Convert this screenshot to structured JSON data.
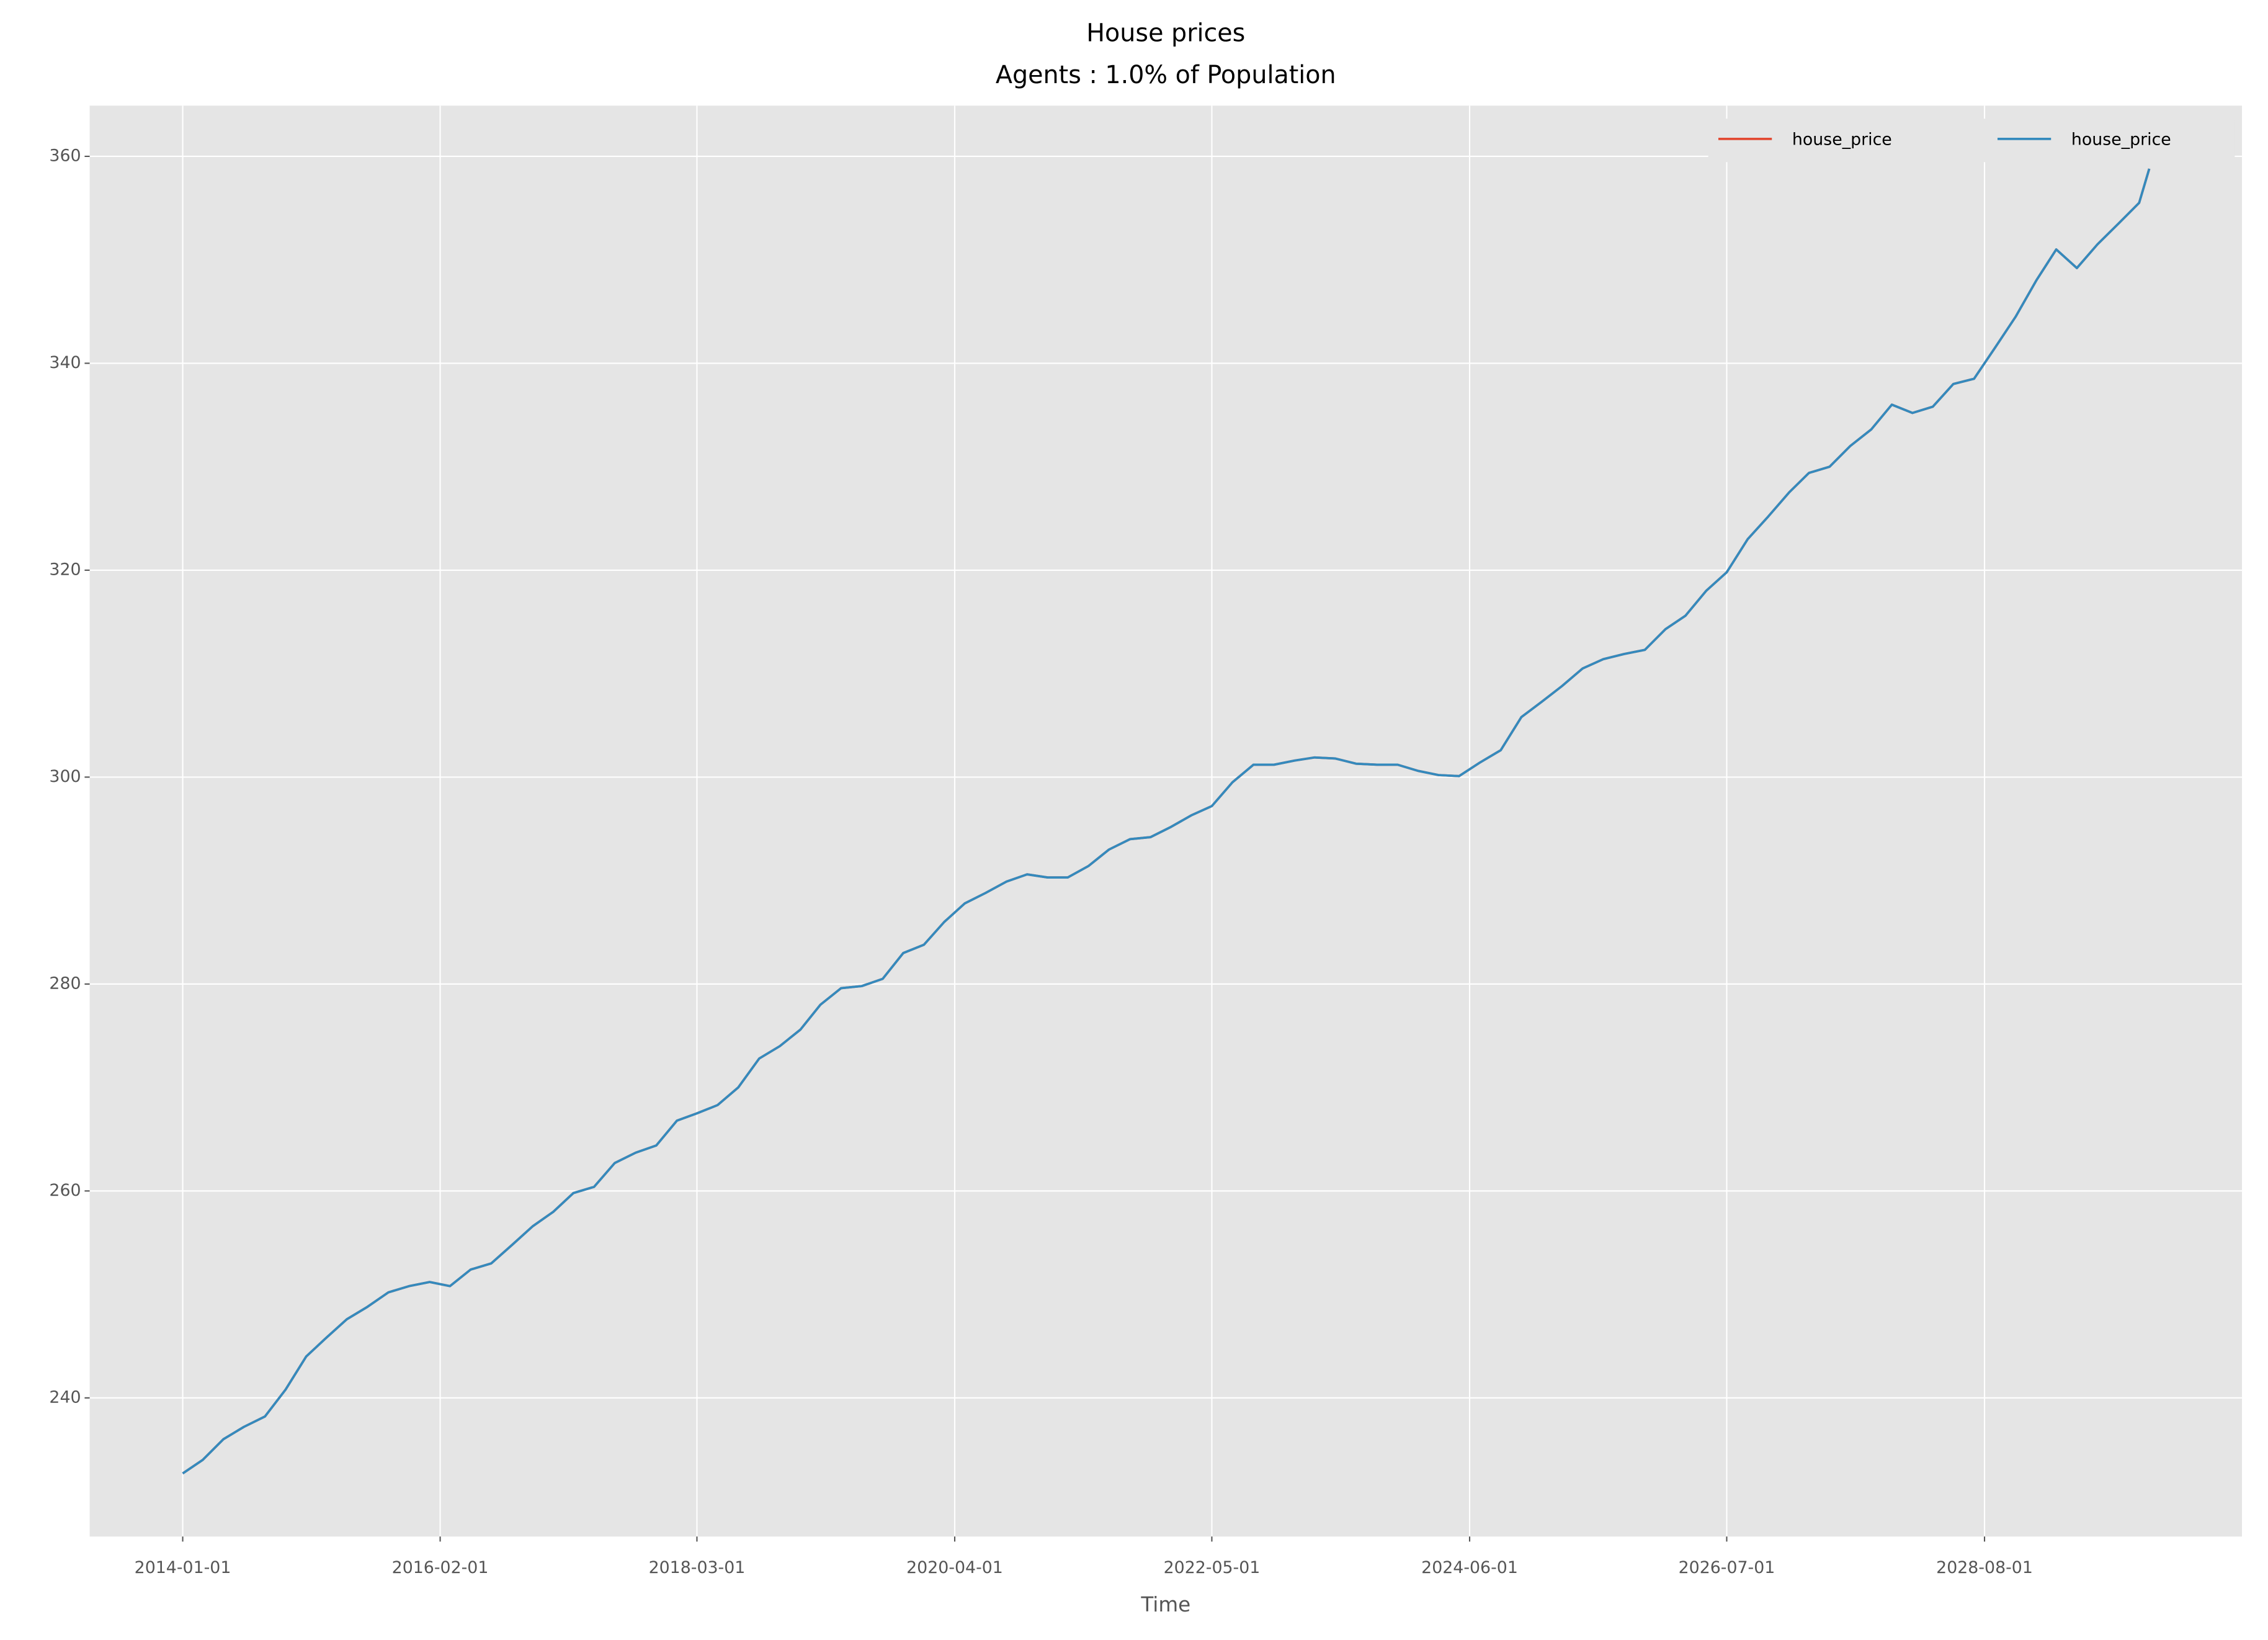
{
  "chart_data": {
    "type": "line",
    "title": "House prices",
    "subtitle": "Agents : 1.0% of Population",
    "x_label": "Time",
    "x": [
      "2014-01-01",
      "2014-03-01",
      "2014-05-01",
      "2014-07-01",
      "2014-09-01",
      "2014-11-01",
      "2015-01-01",
      "2015-03-01",
      "2015-05-01",
      "2015-07-01",
      "2015-09-01",
      "2015-11-01",
      "2016-01-01",
      "2016-03-01",
      "2016-05-01",
      "2016-07-01",
      "2016-09-01",
      "2016-11-01",
      "2017-01-01",
      "2017-03-01",
      "2017-05-01",
      "2017-07-01",
      "2017-09-01",
      "2017-11-01",
      "2018-01-01",
      "2018-03-01",
      "2018-05-01",
      "2018-07-01",
      "2018-09-01",
      "2018-11-01",
      "2019-01-01",
      "2019-03-01",
      "2019-05-01",
      "2019-07-01",
      "2019-09-01",
      "2019-11-01",
      "2020-01-01",
      "2020-03-01",
      "2020-05-01",
      "2020-07-01",
      "2020-09-01",
      "2020-11-01",
      "2021-01-01",
      "2021-03-01",
      "2021-05-01",
      "2021-07-01",
      "2021-09-01",
      "2021-11-01",
      "2022-01-01",
      "2022-03-01",
      "2022-05-01",
      "2022-07-01",
      "2022-09-01",
      "2022-11-01",
      "2023-01-01",
      "2023-03-01",
      "2023-05-01",
      "2023-07-01",
      "2023-09-01",
      "2023-11-01",
      "2024-01-01",
      "2024-03-01",
      "2024-05-01",
      "2024-07-01",
      "2024-09-01",
      "2024-11-01",
      "2025-01-01",
      "2025-03-01",
      "2025-05-01",
      "2025-07-01",
      "2025-09-01",
      "2025-11-01",
      "2026-01-01",
      "2026-03-01",
      "2026-05-01",
      "2026-07-01",
      "2026-09-01",
      "2026-11-01",
      "2027-01-01",
      "2027-03-01",
      "2027-05-01",
      "2027-07-01",
      "2027-09-01",
      "2027-11-01",
      "2028-01-01",
      "2028-03-01",
      "2028-05-01",
      "2028-07-01",
      "2028-09-01",
      "2028-11-01",
      "2029-01-01",
      "2029-03-01",
      "2029-05-01",
      "2029-07-01",
      "2029-09-01",
      "2029-11-01",
      "2029-12-01"
    ],
    "series": [
      {
        "name": "house_price",
        "color": "#E24A33",
        "values": [
          232.7,
          234.0,
          236.0,
          237.2,
          238.2,
          240.8,
          244.0,
          245.8,
          247.6,
          248.8,
          250.2,
          250.8,
          251.2,
          250.8,
          252.4,
          253.0,
          254.8,
          256.6,
          258.0,
          259.8,
          260.4,
          262.7,
          263.7,
          264.4,
          266.8,
          267.5,
          268.3,
          270.0,
          272.8,
          274.0,
          275.6,
          278.0,
          279.6,
          279.8,
          280.5,
          283.0,
          283.8,
          286.0,
          287.8,
          288.8,
          289.9,
          290.6,
          290.3,
          290.3,
          291.4,
          293.0,
          294.0,
          294.2,
          295.2,
          296.3,
          297.2,
          299.5,
          301.2,
          301.2,
          301.6,
          301.9,
          301.8,
          301.3,
          301.2,
          301.2,
          300.6,
          300.2,
          300.1,
          301.4,
          302.6,
          305.8,
          307.3,
          308.8,
          310.5,
          311.4,
          311.9,
          312.3,
          314.3,
          315.6,
          318.0,
          319.8,
          323.0,
          325.2,
          327.5,
          329.4,
          330.0,
          332.0,
          333.6,
          336.0,
          335.2,
          335.8,
          338.0,
          338.5,
          341.5,
          344.5,
          348.0,
          351.0,
          349.2,
          351.5,
          353.5,
          355.5,
          358.8
        ]
      },
      {
        "name": "house_price",
        "color": "#348ABD",
        "values": [
          232.7,
          234.0,
          236.0,
          237.2,
          238.2,
          240.8,
          244.0,
          245.8,
          247.6,
          248.8,
          250.2,
          250.8,
          251.2,
          250.8,
          252.4,
          253.0,
          254.8,
          256.6,
          258.0,
          259.8,
          260.4,
          262.7,
          263.7,
          264.4,
          266.8,
          267.5,
          268.3,
          270.0,
          272.8,
          274.0,
          275.6,
          278.0,
          279.6,
          279.8,
          280.5,
          283.0,
          283.8,
          286.0,
          287.8,
          288.8,
          289.9,
          290.6,
          290.3,
          290.3,
          291.4,
          293.0,
          294.0,
          294.2,
          295.2,
          296.3,
          297.2,
          299.5,
          301.2,
          301.2,
          301.6,
          301.9,
          301.8,
          301.3,
          301.2,
          301.2,
          300.6,
          300.2,
          300.1,
          301.4,
          302.6,
          305.8,
          307.3,
          308.8,
          310.5,
          311.4,
          311.9,
          312.3,
          314.3,
          315.6,
          318.0,
          319.8,
          323.0,
          325.2,
          327.5,
          329.4,
          330.0,
          332.0,
          333.6,
          336.0,
          335.2,
          335.8,
          338.0,
          338.5,
          341.5,
          344.5,
          348.0,
          351.0,
          349.2,
          351.5,
          353.5,
          355.5,
          358.8
        ]
      }
    ],
    "xlim": [
      "2013-04-01",
      "2030-09-01"
    ],
    "xticks": [
      "2014-01-01",
      "2016-02-01",
      "2018-03-01",
      "2020-04-01",
      "2022-05-01",
      "2024-06-01",
      "2026-07-01",
      "2028-08-01"
    ],
    "ylim": [
      226.6,
      364.9
    ],
    "yticks": [
      240,
      260,
      280,
      300,
      320,
      340,
      360
    ],
    "grid": true,
    "legend": "upper right"
  }
}
